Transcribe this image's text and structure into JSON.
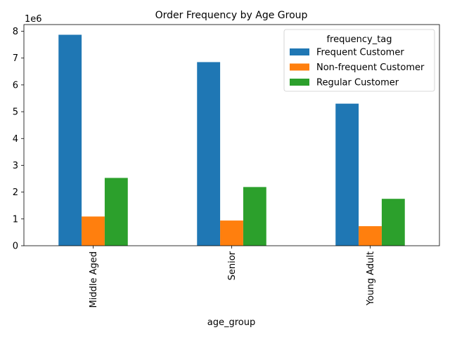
{
  "chart_data": {
    "type": "bar",
    "title": "Order Frequency by Age Group",
    "xlabel": "age_group",
    "ylabel": "",
    "offset_label": "1e6",
    "categories": [
      "Middle Aged",
      "Senior",
      "Young Adult"
    ],
    "series": [
      {
        "name": "Frequent Customer",
        "color": "#1f77b4",
        "values": [
          7870000,
          6850000,
          5300000
        ]
      },
      {
        "name": "Non-frequent Customer",
        "color": "#ff7f0e",
        "values": [
          1090000,
          940000,
          730000
        ]
      },
      {
        "name": "Regular Customer",
        "color": "#2ca02c",
        "values": [
          2530000,
          2190000,
          1750000
        ]
      }
    ],
    "ylim": [
      0,
      8250000
    ],
    "yticks": [
      0,
      1000000,
      2000000,
      3000000,
      4000000,
      5000000,
      6000000,
      7000000,
      8000000
    ],
    "ytick_labels": [
      "0",
      "1",
      "2",
      "3",
      "4",
      "5",
      "6",
      "7",
      "8"
    ],
    "legend": {
      "title": "frequency_tag",
      "placement": "top-right"
    },
    "grid": false
  }
}
